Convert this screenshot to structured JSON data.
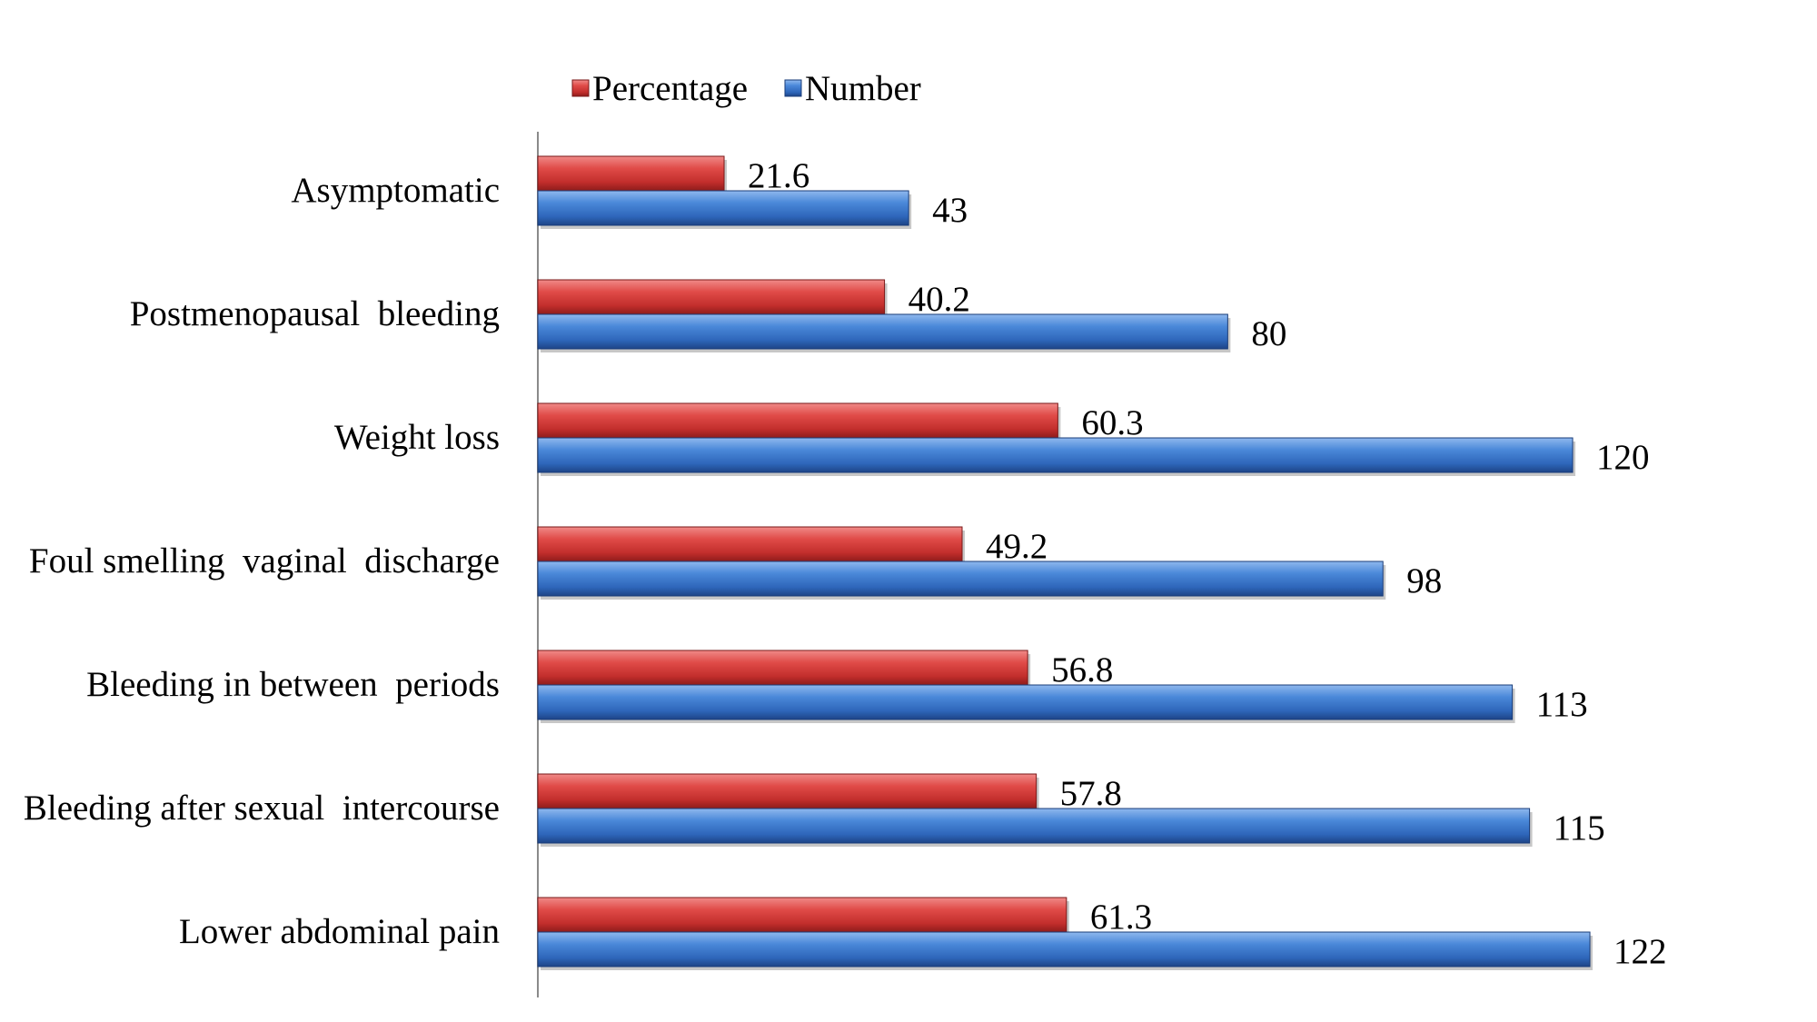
{
  "chart_data": {
    "type": "bar",
    "orientation": "horizontal",
    "categories": [
      "Asymptomatic",
      "Postmenopausal  bleeding",
      "Weight loss",
      "Foul smelling  vaginal  discharge",
      "Bleeding in between  periods",
      "Bleeding after sexual  intercourse",
      "Lower abdominal pain"
    ],
    "series": [
      {
        "name": "Percentage",
        "color": "#d9403e",
        "values": [
          21.6,
          40.2,
          60.3,
          49.2,
          56.8,
          57.8,
          61.3
        ],
        "labels": [
          "21.6",
          "40.2",
          "60.3",
          "49.2",
          "56.8",
          "57.8",
          "61.3"
        ]
      },
      {
        "name": "Number",
        "color": "#3d7bd1",
        "values": [
          43,
          80,
          120,
          98,
          113,
          115,
          122
        ],
        "labels": [
          "43",
          "80",
          "120",
          "98",
          "113",
          "115",
          "122"
        ]
      }
    ],
    "xlim": [
      0,
      126
    ],
    "grid": false,
    "legend_position": "top",
    "x_axis_visible": false
  }
}
